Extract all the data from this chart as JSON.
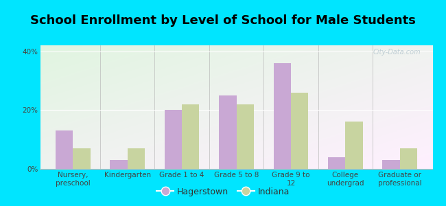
{
  "title": "School Enrollment by Level of School for Male Students",
  "categories": [
    "Nursery,\npreschool",
    "Kindergarten",
    "Grade 1 to 4",
    "Grade 5 to 8",
    "Grade 9 to\n12",
    "College\nundergrad",
    "Graduate or\nprofessional"
  ],
  "hagerstown": [
    13,
    3,
    20,
    25,
    36,
    4,
    3
  ],
  "indiana": [
    7,
    7,
    22,
    22,
    26,
    16,
    7
  ],
  "hagerstown_color": "#c9a8d4",
  "indiana_color": "#c8d4a0",
  "background_outer": "#00e5ff",
  "ylim": [
    0,
    42
  ],
  "yticks": [
    0,
    20,
    40
  ],
  "ytick_labels": [
    "0%",
    "20%",
    "40%"
  ],
  "legend_hagerstown": "Hagerstown",
  "legend_indiana": "Indiana",
  "bar_width": 0.32,
  "title_fontsize": 13,
  "tick_fontsize": 7.5,
  "legend_fontsize": 9,
  "watermark": "City-Data.com"
}
